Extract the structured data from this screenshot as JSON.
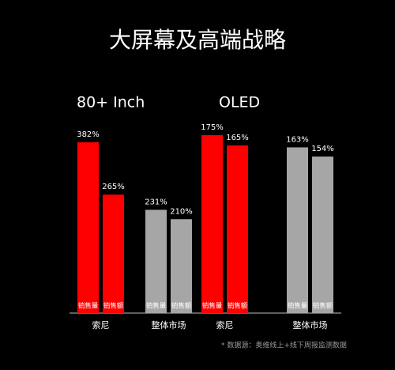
{
  "title": "大屏幕及高端战略",
  "note": "* 数据源：奥维线上+线下周报监测数据",
  "chart_data": [
    {
      "type": "bar",
      "title": "80+ Inch",
      "categories": [
        "索尼",
        "整体市场"
      ],
      "colors": [
        "#ff0000",
        "#a6a6a6"
      ],
      "series": [
        {
          "name": "销售量",
          "values": [
            382,
            231
          ],
          "value_labels": [
            "382%",
            "231%"
          ]
        },
        {
          "name": "销售额",
          "values": [
            265,
            210
          ],
          "value_labels": [
            "265%",
            "210%"
          ]
        }
      ]
    },
    {
      "type": "bar",
      "title": "OLED",
      "categories": [
        "索尼",
        "整体市场"
      ],
      "colors": [
        "#ff0000",
        "#a6a6a6"
      ],
      "series": [
        {
          "name": "销售量",
          "values": [
            175,
            163
          ],
          "value_labels": [
            "175%",
            "163%"
          ]
        },
        {
          "name": "销售额",
          "values": [
            165,
            154
          ],
          "value_labels": [
            "165%",
            "154%"
          ]
        }
      ]
    }
  ]
}
